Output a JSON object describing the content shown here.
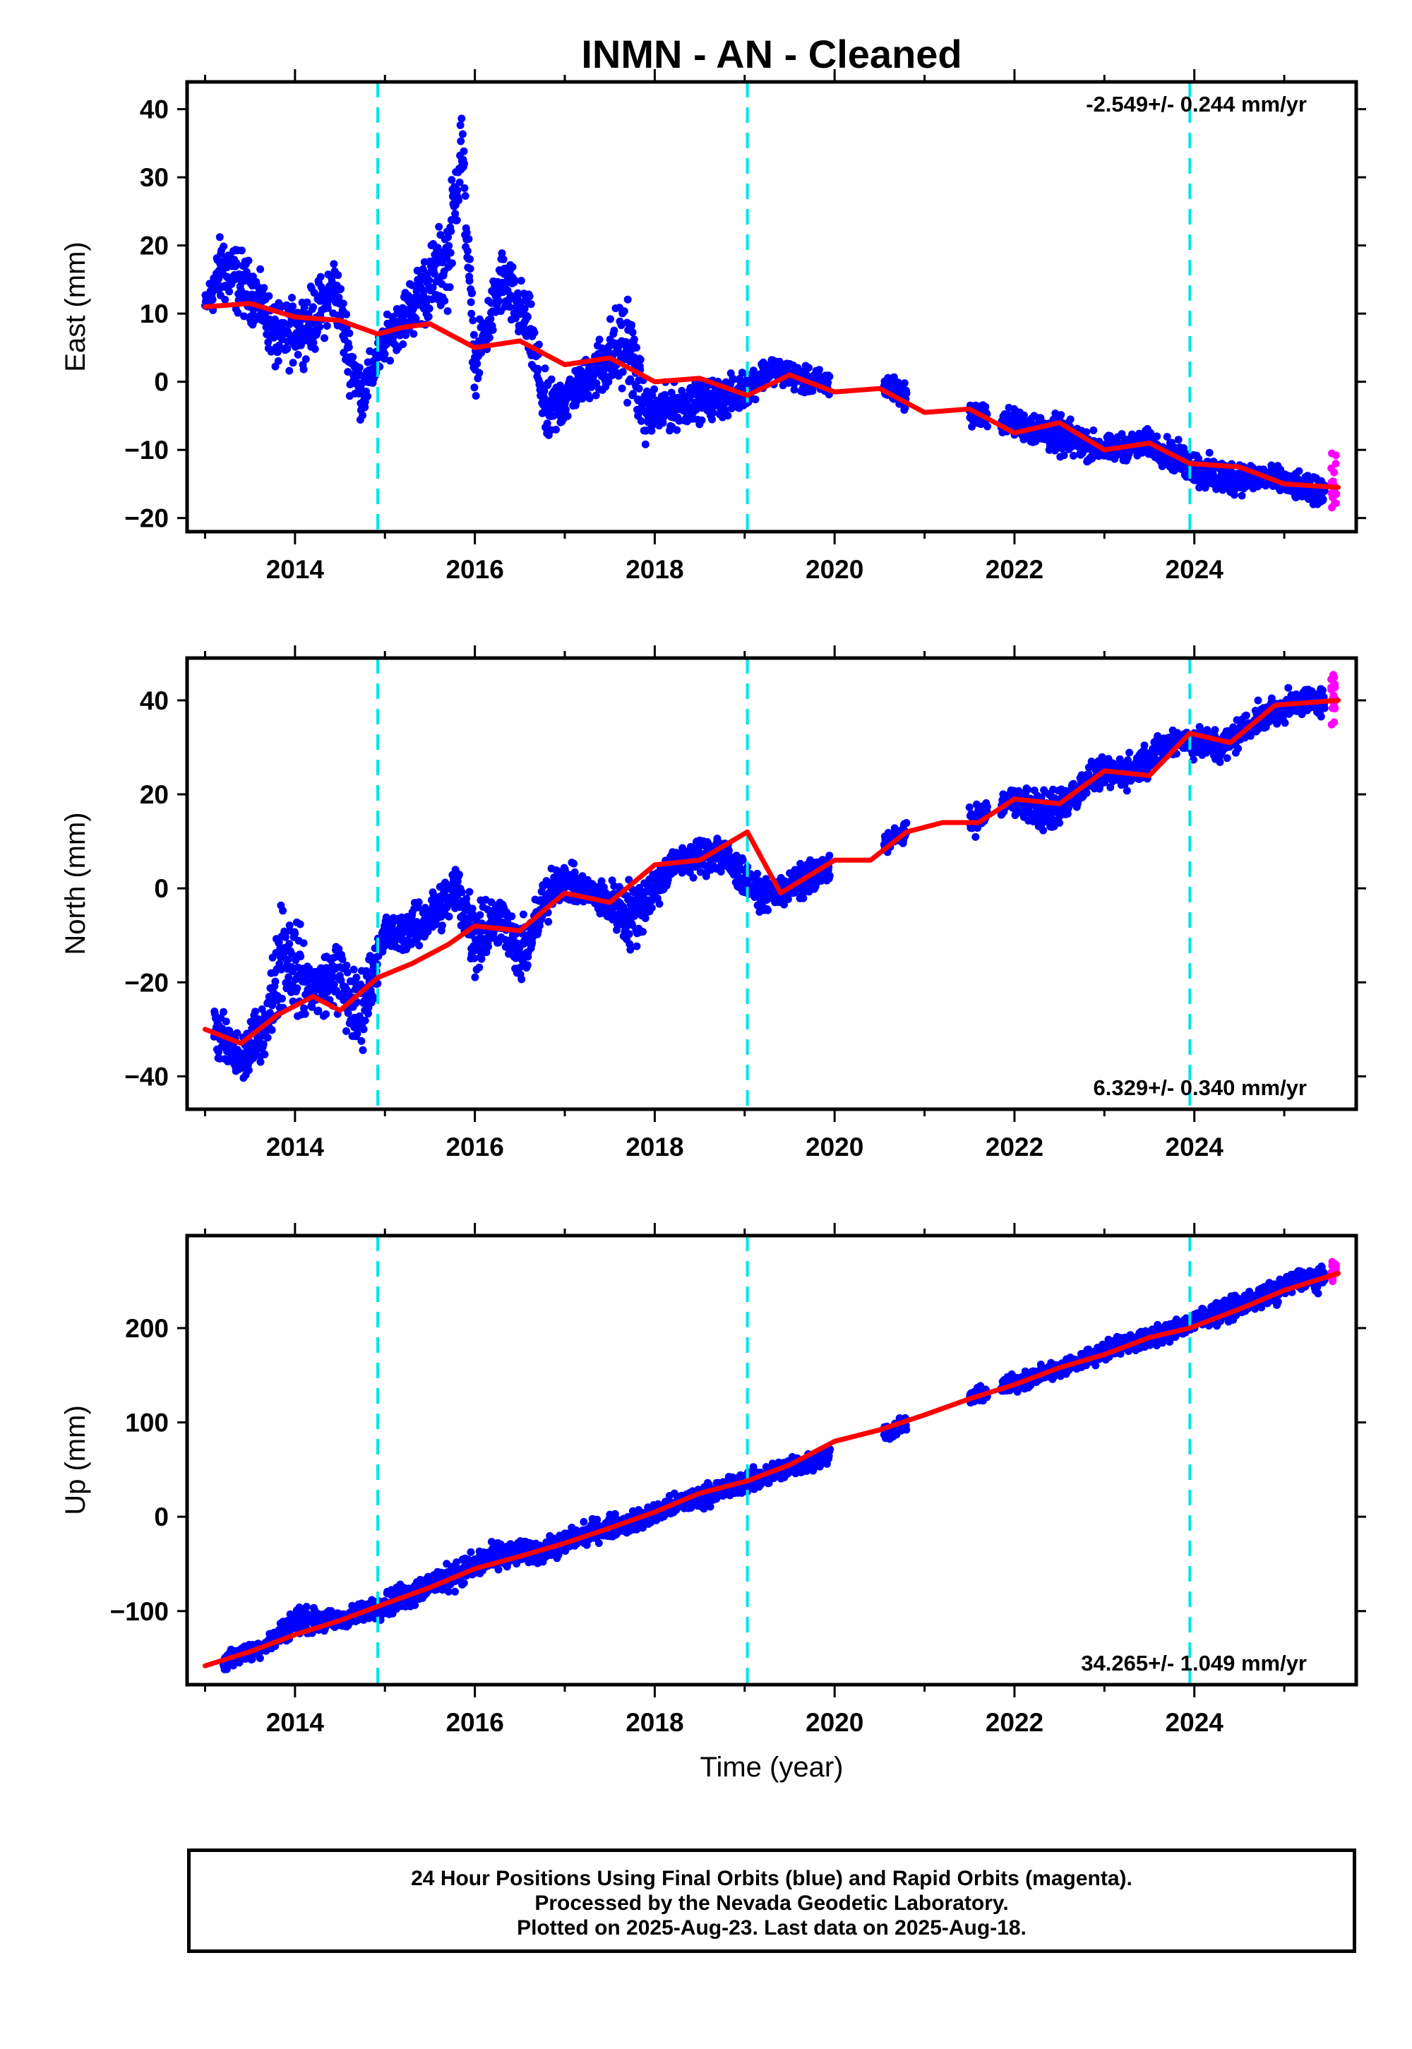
{
  "title": "INMN  - AN - Cleaned",
  "xlabel": "Time (year)",
  "footer": {
    "line1": "24 Hour Positions Using Final Orbits (blue) and Rapid Orbits (magenta).",
    "line2": "Processed by the Nevada Geodetic Laboratory.",
    "line3": "Plotted on 2025-Aug-23. Last data on 2025-Aug-18."
  },
  "colors": {
    "final": "#0000ff",
    "rapid": "#ff00ff",
    "model": "#ff0000",
    "steps": "#00e5e5",
    "frame": "#000000"
  },
  "chart_data": [
    {
      "type": "scatter",
      "name": "East",
      "ylabel": "East (mm)",
      "xlim": [
        2012.8,
        2025.8
      ],
      "ylim": [
        -22,
        44
      ],
      "xticks": [
        2014,
        2016,
        2018,
        2020,
        2022,
        2024
      ],
      "yticks": [
        -20,
        -10,
        0,
        10,
        20,
        30,
        40
      ],
      "rate_label": "-2.549+/- 0.244 mm/yr",
      "rate_position": "top-right",
      "step_epochs": [
        2014.92,
        2019.03,
        2023.95
      ],
      "data_gaps": [
        [
          2019.95,
          2020.55
        ],
        [
          2020.8,
          2021.5
        ],
        [
          2021.7,
          2021.85
        ]
      ],
      "model": {
        "x": [
          2013.0,
          2013.5,
          2014.0,
          2014.5,
          2014.92,
          2015.2,
          2015.5,
          2016.0,
          2016.5,
          2017.0,
          2017.5,
          2018.0,
          2018.5,
          2019.03,
          2019.5,
          2020.0,
          2020.5,
          2021.0,
          2021.5,
          2022.0,
          2022.5,
          2023.0,
          2023.5,
          2023.95,
          2024.5,
          2025.0,
          2025.6
        ],
        "y": [
          11,
          11.5,
          9.5,
          9.0,
          7.0,
          8.0,
          8.5,
          5.0,
          6.0,
          2.5,
          3.5,
          0.0,
          0.5,
          -2.0,
          1.0,
          -1.5,
          -1.0,
          -4.5,
          -4.0,
          -7.5,
          -6.0,
          -10.0,
          -9.0,
          -12.0,
          -12.5,
          -15.0,
          -15.5
        ]
      },
      "observations": [
        {
          "x": 2013.0,
          "y": 11,
          "spread": 2
        },
        {
          "x": 2013.2,
          "y": 17,
          "spread": 6
        },
        {
          "x": 2013.6,
          "y": 12,
          "spread": 4
        },
        {
          "x": 2013.8,
          "y": 6,
          "spread": 5
        },
        {
          "x": 2014.2,
          "y": 9,
          "spread": 5
        },
        {
          "x": 2014.45,
          "y": 14,
          "spread": 5
        },
        {
          "x": 2014.6,
          "y": 4,
          "spread": 5
        },
        {
          "x": 2014.75,
          "y": -2,
          "spread": 4
        },
        {
          "x": 2015.0,
          "y": 6,
          "spread": 3
        },
        {
          "x": 2015.35,
          "y": 12,
          "spread": 5
        },
        {
          "x": 2015.7,
          "y": 18,
          "spread": 7
        },
        {
          "x": 2015.85,
          "y": 35,
          "spread": 7
        },
        {
          "x": 2016.0,
          "y": 2,
          "spread": 4
        },
        {
          "x": 2016.3,
          "y": 15,
          "spread": 5
        },
        {
          "x": 2016.6,
          "y": 8,
          "spread": 5
        },
        {
          "x": 2016.8,
          "y": -5,
          "spread": 5
        },
        {
          "x": 2017.2,
          "y": 0,
          "spread": 3
        },
        {
          "x": 2017.7,
          "y": 6,
          "spread": 8
        },
        {
          "x": 2017.9,
          "y": -5,
          "spread": 4
        },
        {
          "x": 2018.4,
          "y": -3,
          "spread": 3
        },
        {
          "x": 2018.9,
          "y": -2,
          "spread": 3
        },
        {
          "x": 2019.3,
          "y": 2,
          "spread": 2
        },
        {
          "x": 2019.7,
          "y": 0,
          "spread": 2
        },
        {
          "x": 2020.6,
          "y": -1,
          "spread": 2
        },
        {
          "x": 2021.2,
          "y": -4,
          "spread": 2
        },
        {
          "x": 2022.0,
          "y": -6,
          "spread": 2
        },
        {
          "x": 2022.5,
          "y": -8,
          "spread": 3
        },
        {
          "x": 2023.0,
          "y": -10,
          "spread": 2
        },
        {
          "x": 2023.5,
          "y": -9,
          "spread": 2
        },
        {
          "x": 2024.2,
          "y": -14,
          "spread": 3
        },
        {
          "x": 2024.8,
          "y": -14,
          "spread": 2
        },
        {
          "x": 2025.3,
          "y": -16,
          "spread": 2
        }
      ],
      "rapid": {
        "x": 2025.55,
        "y": -15,
        "spread": 5
      }
    },
    {
      "type": "scatter",
      "name": "North",
      "ylabel": "North (mm)",
      "xlim": [
        2012.8,
        2025.8
      ],
      "ylim": [
        -47,
        49
      ],
      "xticks": [
        2014,
        2016,
        2018,
        2020,
        2022,
        2024
      ],
      "yticks": [
        -40,
        -20,
        0,
        20,
        40
      ],
      "rate_label": "6.329+/- 0.340 mm/yr",
      "rate_position": "bottom-right",
      "step_epochs": [
        2014.92,
        2019.03,
        2023.95
      ],
      "data_gaps": [
        [
          2019.95,
          2020.55
        ],
        [
          2020.8,
          2021.5
        ],
        [
          2021.7,
          2021.85
        ]
      ],
      "model": {
        "x": [
          2013.0,
          2013.4,
          2013.8,
          2014.2,
          2014.5,
          2014.92,
          2015.3,
          2015.7,
          2016.0,
          2016.5,
          2017.0,
          2017.5,
          2018.0,
          2018.5,
          2019.03,
          2019.4,
          2020.0,
          2020.4,
          2020.8,
          2021.2,
          2021.6,
          2022.0,
          2022.5,
          2023.0,
          2023.5,
          2023.95,
          2024.4,
          2024.9,
          2025.6
        ],
        "y": [
          -30,
          -33,
          -27,
          -23,
          -26,
          -19,
          -16,
          -12,
          -8,
          -9,
          -1,
          -3,
          5,
          6,
          12,
          -1,
          6,
          6,
          12,
          14,
          14,
          19,
          18,
          25,
          24,
          33,
          31,
          39,
          40
        ]
      },
      "observations": [
        {
          "x": 2013.1,
          "y": -30,
          "spread": 6
        },
        {
          "x": 2013.4,
          "y": -37,
          "spread": 6
        },
        {
          "x": 2013.7,
          "y": -28,
          "spread": 6
        },
        {
          "x": 2013.85,
          "y": -12,
          "spread": 14
        },
        {
          "x": 2014.2,
          "y": -22,
          "spread": 6
        },
        {
          "x": 2014.45,
          "y": -18,
          "spread": 8
        },
        {
          "x": 2014.7,
          "y": -28,
          "spread": 10
        },
        {
          "x": 2015.0,
          "y": -10,
          "spread": 4
        },
        {
          "x": 2015.4,
          "y": -8,
          "spread": 5
        },
        {
          "x": 2015.8,
          "y": 0,
          "spread": 6
        },
        {
          "x": 2016.0,
          "y": -10,
          "spread": 10
        },
        {
          "x": 2016.3,
          "y": -6,
          "spread": 5
        },
        {
          "x": 2016.5,
          "y": -15,
          "spread": 7
        },
        {
          "x": 2016.9,
          "y": 2,
          "spread": 5
        },
        {
          "x": 2017.3,
          "y": -1,
          "spread": 3
        },
        {
          "x": 2017.75,
          "y": -6,
          "spread": 8
        },
        {
          "x": 2018.2,
          "y": 5,
          "spread": 3
        },
        {
          "x": 2018.7,
          "y": 8,
          "spread": 5
        },
        {
          "x": 2019.2,
          "y": -2,
          "spread": 3
        },
        {
          "x": 2019.6,
          "y": 1,
          "spread": 4
        },
        {
          "x": 2020.8,
          "y": 12,
          "spread": 2
        },
        {
          "x": 2021.3,
          "y": 12,
          "spread": 3
        },
        {
          "x": 2022.0,
          "y": 19,
          "spread": 3
        },
        {
          "x": 2022.4,
          "y": 16,
          "spread": 5
        },
        {
          "x": 2022.9,
          "y": 24,
          "spread": 3
        },
        {
          "x": 2023.3,
          "y": 25,
          "spread": 4
        },
        {
          "x": 2023.8,
          "y": 32,
          "spread": 3
        },
        {
          "x": 2024.3,
          "y": 30,
          "spread": 4
        },
        {
          "x": 2024.7,
          "y": 36,
          "spread": 3
        },
        {
          "x": 2025.2,
          "y": 40,
          "spread": 3
        }
      ],
      "rapid": {
        "x": 2025.55,
        "y": 40,
        "spread": 7
      }
    },
    {
      "type": "scatter",
      "name": "Up",
      "ylabel": "Up (mm)",
      "xlim": [
        2012.8,
        2025.8
      ],
      "ylim": [
        -178,
        298
      ],
      "xticks": [
        2014,
        2016,
        2018,
        2020,
        2022,
        2024
      ],
      "yticks": [
        -100,
        0,
        100,
        200
      ],
      "rate_label": "34.265+/- 1.049 mm/yr",
      "rate_position": "bottom-right",
      "step_epochs": [
        2014.92,
        2019.03,
        2023.95
      ],
      "data_gaps": [
        [
          2019.95,
          2020.55
        ],
        [
          2020.8,
          2021.5
        ],
        [
          2021.7,
          2021.85
        ]
      ],
      "model": {
        "x": [
          2013.0,
          2013.5,
          2014.0,
          2014.5,
          2014.92,
          2015.5,
          2016.0,
          2016.5,
          2017.0,
          2017.5,
          2018.0,
          2018.5,
          2019.03,
          2019.5,
          2020.0,
          2020.5,
          2021.0,
          2021.5,
          2022.0,
          2022.5,
          2023.0,
          2023.5,
          2023.95,
          2024.5,
          2025.0,
          2025.6
        ],
        "y": [
          -158,
          -143,
          -125,
          -110,
          -95,
          -75,
          -55,
          -42,
          -28,
          -12,
          5,
          25,
          38,
          55,
          80,
          92,
          108,
          125,
          140,
          158,
          172,
          190,
          200,
          220,
          240,
          258
        ]
      },
      "observations": [
        {
          "x": 2013.2,
          "y": -155,
          "spread": 10
        },
        {
          "x": 2013.7,
          "y": -135,
          "spread": 10
        },
        {
          "x": 2014.0,
          "y": -110,
          "spread": 15
        },
        {
          "x": 2014.5,
          "y": -110,
          "spread": 10
        },
        {
          "x": 2015.2,
          "y": -85,
          "spread": 15
        },
        {
          "x": 2015.8,
          "y": -60,
          "spread": 15
        },
        {
          "x": 2016.3,
          "y": -40,
          "spread": 15
        },
        {
          "x": 2016.8,
          "y": -35,
          "spread": 12
        },
        {
          "x": 2017.3,
          "y": -15,
          "spread": 12
        },
        {
          "x": 2017.8,
          "y": -5,
          "spread": 12
        },
        {
          "x": 2018.3,
          "y": 15,
          "spread": 12
        },
        {
          "x": 2018.8,
          "y": 30,
          "spread": 12
        },
        {
          "x": 2019.4,
          "y": 50,
          "spread": 12
        },
        {
          "x": 2019.8,
          "y": 60,
          "spread": 10
        },
        {
          "x": 2020.7,
          "y": 95,
          "spread": 8
        },
        {
          "x": 2021.3,
          "y": 118,
          "spread": 8
        },
        {
          "x": 2022.1,
          "y": 145,
          "spread": 10
        },
        {
          "x": 2022.6,
          "y": 160,
          "spread": 10
        },
        {
          "x": 2023.1,
          "y": 180,
          "spread": 10
        },
        {
          "x": 2023.6,
          "y": 192,
          "spread": 10
        },
        {
          "x": 2024.2,
          "y": 215,
          "spread": 12
        },
        {
          "x": 2024.7,
          "y": 230,
          "spread": 12
        },
        {
          "x": 2025.2,
          "y": 252,
          "spread": 12
        }
      ],
      "rapid": {
        "x": 2025.55,
        "y": 260,
        "spread": 15
      }
    }
  ]
}
